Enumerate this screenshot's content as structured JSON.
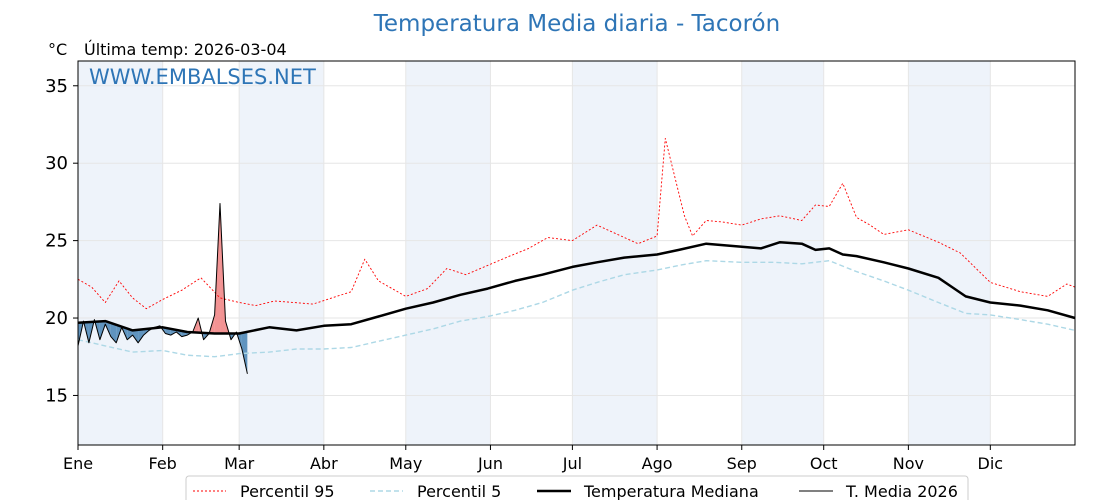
{
  "chart_data": {
    "type": "line",
    "title": "Temperatura Media diaria - Tacorón",
    "unit_label": "°C",
    "last_temp_label": "Última temp: 2026-03-04",
    "watermark": "WWW.EMBALSES.NET",
    "ylim": [
      11.8,
      36.6
    ],
    "yticks": [
      15,
      20,
      25,
      30,
      35
    ],
    "xlim": [
      0,
      365
    ],
    "month_labels": [
      "Ene",
      "Feb",
      "Mar",
      "Abr",
      "May",
      "Jun",
      "Jul",
      "Ago",
      "Sep",
      "Oct",
      "Nov",
      "Dic"
    ],
    "month_starts": [
      0,
      31,
      59,
      90,
      120,
      151,
      181,
      212,
      243,
      273,
      304,
      334
    ],
    "grid": true,
    "legend_position": "bottom-center",
    "colors": {
      "p95": "#ff0000",
      "p5": "#add8e6",
      "median": "#000000",
      "current": "#000000",
      "above_fill": "#f08080",
      "below_fill": "#4682b4",
      "band": "#eef3fa"
    },
    "series": [
      {
        "key": "p95",
        "name": "Percentil 95",
        "x": [
          0,
          5,
          10,
          15,
          20,
          25,
          31,
          38,
          45,
          52,
          59,
          65,
          72,
          79,
          86,
          93,
          100,
          105,
          110,
          115,
          120,
          128,
          135,
          142,
          150,
          158,
          165,
          172,
          181,
          190,
          200,
          205,
          212,
          215,
          222,
          225,
          230,
          236,
          243,
          250,
          257,
          265,
          270,
          275,
          280,
          285,
          290,
          295,
          304,
          315,
          323,
          334,
          345,
          355,
          362,
          365
        ],
        "values": [
          22.5,
          22.0,
          21.0,
          22.4,
          21.3,
          20.6,
          21.2,
          21.8,
          22.6,
          21.3,
          21.0,
          20.8,
          21.1,
          21.0,
          20.9,
          21.3,
          21.7,
          23.8,
          22.4,
          21.9,
          21.4,
          21.9,
          23.2,
          22.8,
          23.4,
          24.0,
          24.5,
          25.2,
          25.0,
          26.0,
          25.2,
          24.8,
          25.3,
          31.6,
          26.6,
          25.3,
          26.3,
          26.2,
          26.0,
          26.4,
          26.6,
          26.3,
          27.3,
          27.2,
          28.7,
          26.5,
          26.0,
          25.4,
          25.7,
          24.9,
          24.2,
          22.3,
          21.7,
          21.4,
          22.2,
          22.0
        ]
      },
      {
        "key": "p5",
        "name": "Percentil 5",
        "x": [
          0,
          10,
          20,
          31,
          40,
          50,
          59,
          70,
          80,
          90,
          100,
          110,
          120,
          130,
          140,
          150,
          160,
          170,
          181,
          190,
          200,
          212,
          220,
          230,
          243,
          255,
          265,
          275,
          285,
          295,
          304,
          315,
          325,
          334,
          345,
          355,
          365
        ],
        "values": [
          18.6,
          18.2,
          17.8,
          17.9,
          17.6,
          17.5,
          17.7,
          17.8,
          18.0,
          18.0,
          18.1,
          18.5,
          18.9,
          19.3,
          19.8,
          20.1,
          20.5,
          21.0,
          21.8,
          22.3,
          22.8,
          23.1,
          23.4,
          23.7,
          23.6,
          23.6,
          23.5,
          23.7,
          23.0,
          22.4,
          21.8,
          21.0,
          20.3,
          20.2,
          19.9,
          19.6,
          19.2
        ]
      },
      {
        "key": "median",
        "name": "Temperatura Mediana",
        "x": [
          0,
          10,
          20,
          31,
          40,
          50,
          59,
          70,
          80,
          90,
          100,
          110,
          120,
          130,
          140,
          150,
          160,
          170,
          181,
          190,
          200,
          212,
          220,
          230,
          243,
          250,
          257,
          265,
          270,
          275,
          280,
          285,
          295,
          304,
          315,
          320,
          325,
          334,
          345,
          355,
          365
        ],
        "values": [
          19.7,
          19.8,
          19.2,
          19.4,
          19.1,
          19.0,
          19.0,
          19.4,
          19.2,
          19.5,
          19.6,
          20.1,
          20.6,
          21.0,
          21.5,
          21.9,
          22.4,
          22.8,
          23.3,
          23.6,
          23.9,
          24.1,
          24.4,
          24.8,
          24.6,
          24.5,
          24.9,
          24.8,
          24.4,
          24.5,
          24.1,
          24.0,
          23.6,
          23.2,
          22.6,
          22.0,
          21.4,
          21.0,
          20.8,
          20.5,
          20.0
        ]
      },
      {
        "key": "current",
        "name": "T. Media 2026",
        "x": [
          0,
          2,
          4,
          6,
          8,
          10,
          12,
          14,
          16,
          18,
          20,
          22,
          24,
          26,
          28,
          30,
          32,
          34,
          36,
          38,
          40,
          42,
          44,
          46,
          48,
          50,
          52,
          54,
          56,
          58,
          60,
          62
        ],
        "values": [
          18.2,
          19.8,
          18.4,
          19.9,
          18.6,
          19.6,
          18.8,
          18.4,
          19.4,
          18.6,
          18.9,
          18.4,
          18.9,
          19.2,
          19.4,
          19.5,
          19.0,
          18.9,
          19.1,
          18.8,
          18.9,
          19.1,
          20.0,
          18.6,
          19.0,
          20.2,
          27.4,
          19.8,
          18.6,
          19.1,
          18.0,
          16.4
        ]
      }
    ]
  }
}
